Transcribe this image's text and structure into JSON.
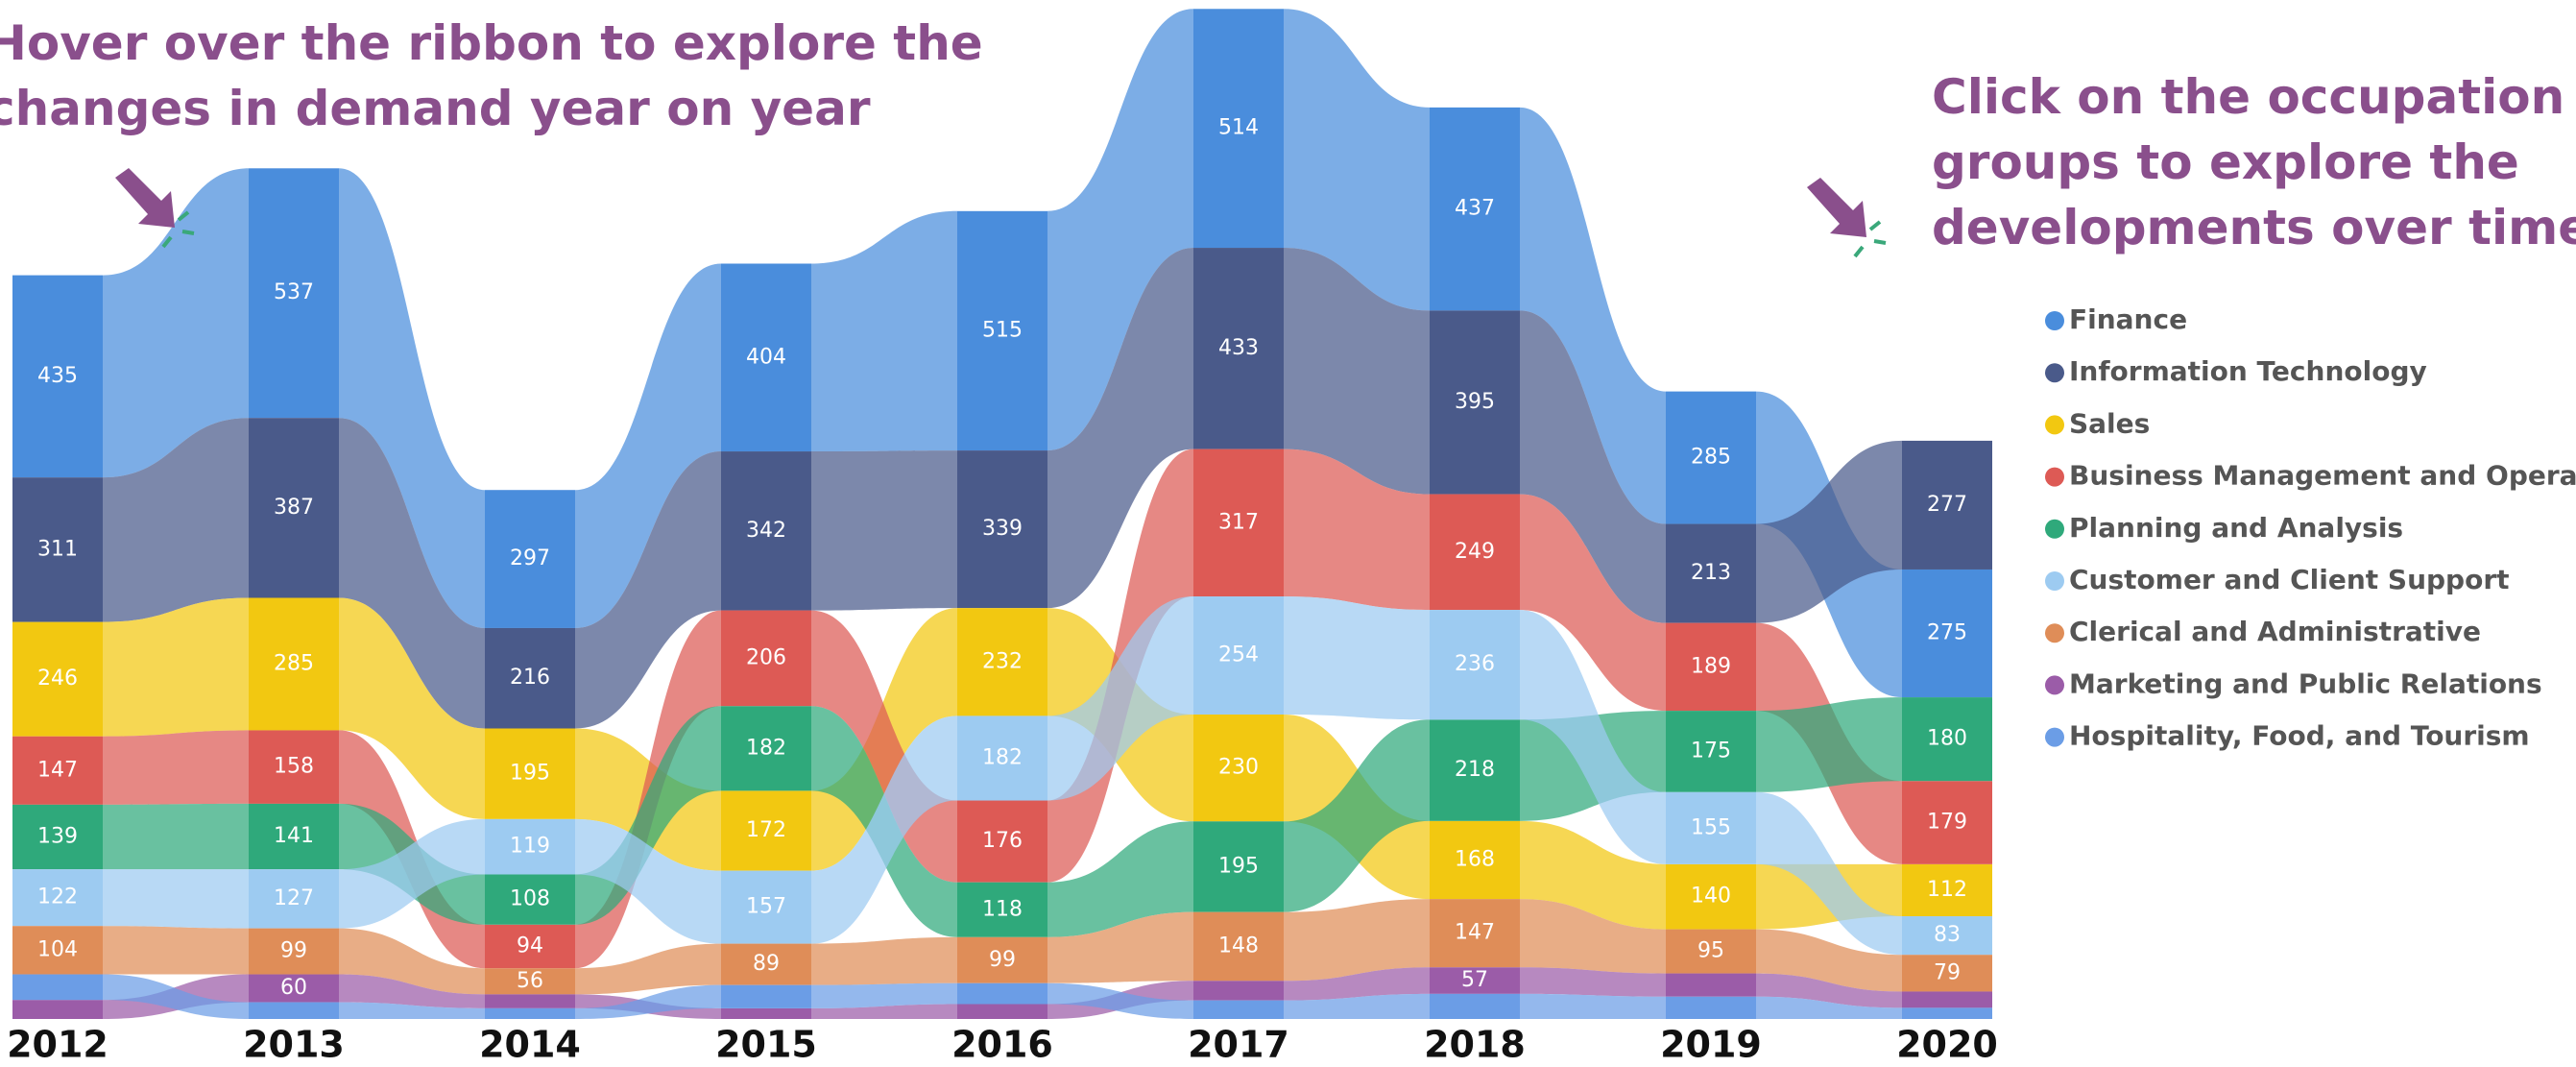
{
  "chart_data": {
    "type": "ribbon",
    "annotations": [
      "Hover over the ribbon to explore the",
      "changes in demand year on year",
      "Click on the occupation",
      "groups to explore the",
      "developments over time"
    ],
    "categories": [
      "2012",
      "2013",
      "2014",
      "2015",
      "2016",
      "2017",
      "2018",
      "2019",
      "2020"
    ],
    "series": [
      {
        "name": "Finance",
        "color": "#4a8ddc",
        "values": [
          435,
          537,
          297,
          404,
          515,
          514,
          437,
          285,
          275
        ]
      },
      {
        "name": "Information Technology",
        "color": "#4a5a8a",
        "values": [
          311,
          387,
          216,
          342,
          339,
          433,
          395,
          213,
          277
        ]
      },
      {
        "name": "Sales",
        "color": "#f2c811",
        "values": [
          246,
          285,
          195,
          172,
          232,
          230,
          168,
          140,
          112
        ]
      },
      {
        "name": "Business Management and Operations",
        "color": "#dd5a55",
        "values": [
          147,
          158,
          94,
          206,
          176,
          317,
          249,
          189,
          179
        ]
      },
      {
        "name": "Planning and Analysis",
        "color": "#2fa97b",
        "values": [
          139,
          141,
          108,
          182,
          118,
          195,
          218,
          175,
          180
        ]
      },
      {
        "name": "Customer and Client Support",
        "color": "#9dcbf1",
        "values": [
          122,
          127,
          119,
          157,
          182,
          254,
          236,
          155,
          83
        ]
      },
      {
        "name": "Clerical and Administrative",
        "color": "#df8d58",
        "values": [
          104,
          99,
          56,
          89,
          99,
          148,
          147,
          95,
          79
        ]
      },
      {
        "name": "Marketing and Public Relations",
        "color": "#9b5ca8",
        "values": [
          41,
          60,
          30,
          23,
          32,
          42,
          57,
          50,
          35
        ]
      },
      {
        "name": "Hospitality, Food, and Tourism",
        "color": "#6b9de6",
        "values": [
          55,
          36,
          23,
          50,
          45,
          40,
          54,
          48,
          24
        ]
      }
    ]
  }
}
